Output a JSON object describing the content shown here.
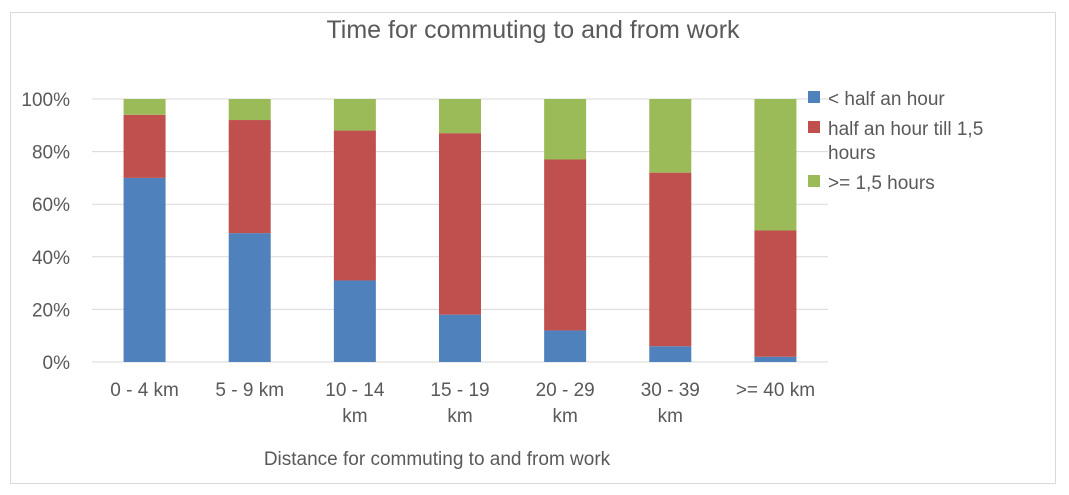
{
  "chart_data": {
    "type": "bar",
    "stacked": "percent",
    "title": "Time for commuting to and from work",
    "xlabel": "Distance for commuting to and from work",
    "ylabel": "",
    "ylim": [
      0,
      100
    ],
    "y_ticks": [
      "0%",
      "20%",
      "40%",
      "60%",
      "80%",
      "100%"
    ],
    "categories": [
      [
        "0 - 4 km"
      ],
      [
        "5 - 9 km"
      ],
      [
        "10 - 14",
        "km"
      ],
      [
        "15 - 19",
        "km"
      ],
      [
        "20 - 29",
        "km"
      ],
      [
        "30 - 39",
        "km"
      ],
      [
        ">= 40 km"
      ]
    ],
    "series": [
      {
        "name": "< half an hour",
        "name_lines": [
          "< half an hour"
        ],
        "color": "#4f81bd",
        "values": [
          70,
          49,
          31,
          18,
          12,
          6,
          2
        ]
      },
      {
        "name": "half an hour till 1,5 hours",
        "name_lines": [
          "half an hour till 1,5",
          "hours"
        ],
        "color": "#c0504d",
        "values": [
          24,
          43,
          57,
          69,
          65,
          66,
          48
        ]
      },
      {
        "name": ">= 1,5 hours",
        "name_lines": [
          ">= 1,5 hours"
        ],
        "color": "#9bbb59",
        "values": [
          6,
          8,
          12,
          13,
          23,
          28,
          50
        ]
      }
    ],
    "grid": true,
    "legend": "right"
  }
}
